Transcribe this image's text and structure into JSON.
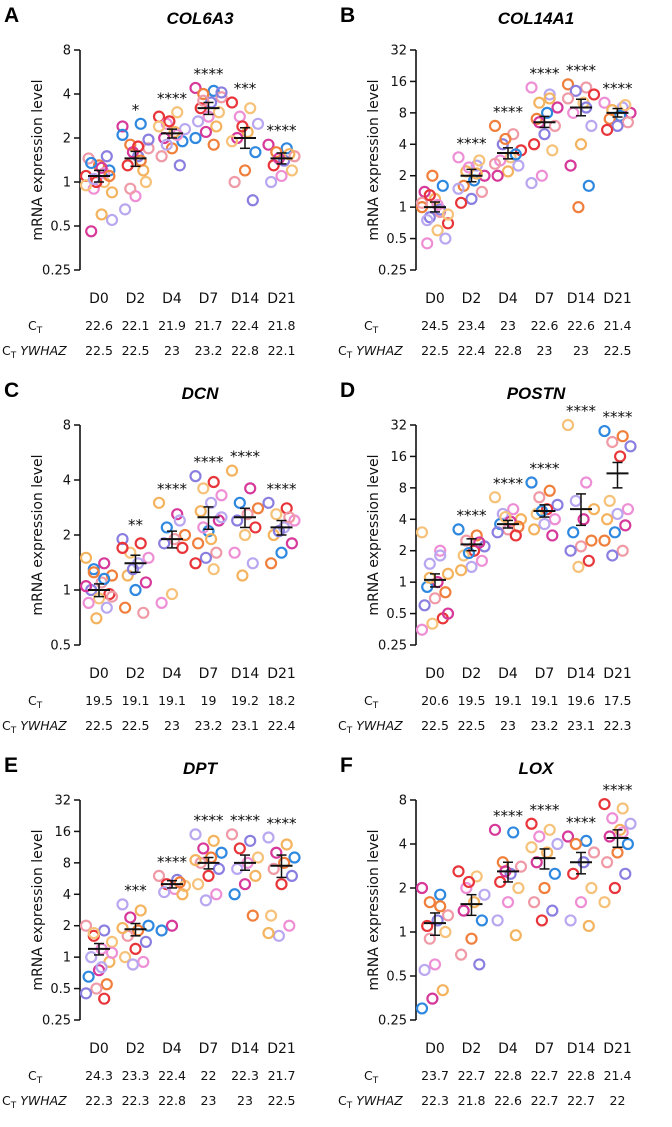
{
  "chart_data": [
    {
      "panel": "A",
      "title": "COL6A3",
      "type": "scatter",
      "yscale": "log2",
      "ylabel": "mRNA expression level",
      "yticks": [
        0.25,
        0.5,
        1,
        2,
        4,
        8
      ],
      "ytick_labels": [
        "0.25",
        "0.5",
        "1",
        "2",
        "4",
        "8"
      ],
      "categories": [
        "D0",
        "D2",
        "D4",
        "D7",
        "D14",
        "D21"
      ],
      "means": [
        1.1,
        1.45,
        2.15,
        3.2,
        2.0,
        1.45
      ],
      "sem_low": [
        1.0,
        1.28,
        2.0,
        2.9,
        1.7,
        1.33
      ],
      "sem_high": [
        1.2,
        1.62,
        2.3,
        3.5,
        2.35,
        1.58
      ],
      "significance": [
        "",
        "*",
        "****",
        "****",
        "***",
        "****"
      ],
      "points": [
        [
          1.1,
          1.0,
          0.9,
          0.55,
          0.6,
          0.46,
          1.2,
          1.3,
          1.45,
          1.5,
          1.0,
          0.95,
          1.15,
          1.05,
          0.85,
          1.25,
          1.35,
          1.1
        ],
        [
          2.4,
          2.5,
          1.8,
          1.7,
          1.5,
          1.3,
          1.0,
          0.8,
          0.65,
          1.2,
          1.6,
          2.1,
          1.4,
          0.9,
          1.95,
          1.75
        ],
        [
          2.8,
          3.0,
          2.5,
          2.3,
          2.2,
          2.0,
          1.9,
          1.7,
          1.5,
          1.3,
          2.6,
          2.4,
          2.1,
          1.8
        ],
        [
          4.4,
          4.2,
          4.0,
          3.8,
          3.5,
          3.2,
          3.0,
          2.8,
          2.6,
          2.4,
          2.2,
          2.0,
          1.8,
          3.6,
          4.1
        ],
        [
          3.5,
          3.2,
          2.8,
          2.5,
          2.2,
          2.0,
          1.6,
          1.2,
          1.0,
          0.75,
          2.4,
          1.9
        ],
        [
          1.8,
          1.7,
          1.6,
          1.5,
          1.4,
          1.3,
          1.2,
          1.1,
          1.0,
          1.55,
          1.45
        ]
      ],
      "ct": [
        "22.6",
        "22.1",
        "21.9",
        "21.7",
        "22.4",
        "21.8"
      ],
      "ct_ywhaz": [
        "22.5",
        "22.5",
        "23",
        "23.2",
        "22.8",
        "22.1"
      ]
    },
    {
      "panel": "B",
      "title": "COL14A1",
      "type": "scatter",
      "yscale": "log2",
      "ylabel": "mRNA expression level",
      "yticks": [
        0.25,
        0.5,
        1,
        2,
        4,
        8,
        16,
        32
      ],
      "ytick_labels": [
        "0.25",
        "0.5",
        "1",
        "2",
        "4",
        "8",
        "16",
        "32"
      ],
      "categories": [
        "D0",
        "D2",
        "D4",
        "D7",
        "D14",
        "D21"
      ],
      "means": [
        1.0,
        2.0,
        3.3,
        6.5,
        9.0,
        8.0
      ],
      "sem_low": [
        0.9,
        1.75,
        2.9,
        5.8,
        7.5,
        7.3
      ],
      "sem_high": [
        1.12,
        2.3,
        3.7,
        7.4,
        10.8,
        8.8
      ],
      "significance": [
        "",
        "****",
        "****",
        "****",
        "****",
        "****"
      ],
      "points": [
        [
          1.0,
          0.9,
          0.8,
          0.7,
          0.6,
          0.45,
          0.5,
          1.2,
          1.4,
          1.6,
          2.0,
          1.1,
          0.95,
          1.3,
          0.85,
          1.05,
          0.75
        ],
        [
          3.0,
          2.5,
          2.2,
          2.0,
          1.8,
          1.6,
          1.4,
          1.2,
          1.1,
          2.8,
          2.4,
          1.5,
          2.1
        ],
        [
          6.0,
          5.0,
          4.0,
          3.5,
          3.0,
          2.8,
          2.5,
          2.2,
          2.0,
          3.2,
          4.5,
          2.6
        ],
        [
          14.0,
          12.0,
          10.0,
          9.0,
          8.0,
          7.0,
          6.0,
          5.0,
          4.0,
          3.5,
          2.0,
          1.7,
          11.0,
          6.5
        ],
        [
          15.0,
          14.0,
          13.0,
          12.0,
          10.0,
          8.0,
          6.0,
          4.0,
          2.5,
          1.6,
          1.0,
          11.0,
          9.0
        ],
        [
          10.0,
          9.0,
          8.5,
          8.0,
          7.5,
          7.0,
          6.5,
          6.0,
          5.5,
          9.5
        ]
      ],
      "ct": [
        "24.5",
        "23.4",
        "23",
        "22.6",
        "22.6",
        "21.4"
      ],
      "ct_ywhaz": [
        "22.5",
        "22.4",
        "22.8",
        "23",
        "23",
        "22.5"
      ]
    },
    {
      "panel": "C",
      "title": "DCN",
      "type": "scatter",
      "yscale": "log2",
      "ylabel": "mRNA expression level",
      "yticks": [
        0.5,
        1,
        2,
        4,
        8
      ],
      "ytick_labels": [
        "0.5",
        "1",
        "2",
        "4",
        "8"
      ],
      "categories": [
        "D0",
        "D2",
        "D4",
        "D7",
        "D14",
        "D21"
      ],
      "means": [
        1.0,
        1.4,
        1.9,
        2.5,
        2.5,
        2.2
      ],
      "sem_low": [
        0.92,
        1.25,
        1.7,
        2.15,
        2.2,
        2.0
      ],
      "sem_high": [
        1.08,
        1.55,
        2.1,
        2.85,
        2.8,
        2.4
      ],
      "significance": [
        "",
        "**",
        "****",
        "****",
        "****",
        "****"
      ],
      "points": [
        [
          1.5,
          1.4,
          1.3,
          1.2,
          1.1,
          1.0,
          0.95,
          0.9,
          0.85,
          0.8,
          0.7,
          1.05,
          1.15,
          1.25,
          0.92
        ],
        [
          1.9,
          1.8,
          1.6,
          1.5,
          1.4,
          1.2,
          1.1,
          1.0,
          0.8,
          0.75,
          1.3,
          1.7
        ],
        [
          3.0,
          2.6,
          2.2,
          2.0,
          1.9,
          1.8,
          1.7,
          0.95,
          0.85,
          2.4
        ],
        [
          4.2,
          3.9,
          3.6,
          3.3,
          3.0,
          2.7,
          2.4,
          2.1,
          1.8,
          1.6,
          1.5,
          1.4,
          1.3,
          2.2,
          2.5,
          1.9
        ],
        [
          4.5,
          3.6,
          3.0,
          2.8,
          2.6,
          2.4,
          2.2,
          2.0,
          1.6,
          1.4,
          1.2
        ],
        [
          3.0,
          2.8,
          2.6,
          2.4,
          2.2,
          2.0,
          1.8,
          1.6,
          1.4,
          2.5,
          2.1
        ]
      ],
      "ct": [
        "19.5",
        "19.1",
        "19.1",
        "19",
        "19.2",
        "18.2"
      ],
      "ct_ywhaz": [
        "22.5",
        "22.5",
        "23",
        "23.2",
        "23.1",
        "22.4"
      ]
    },
    {
      "panel": "D",
      "title": "POSTN",
      "type": "scatter",
      "yscale": "log2",
      "ylabel": "mRNA expression level",
      "yticks": [
        0.25,
        0.5,
        1,
        2,
        4,
        8,
        16,
        32
      ],
      "ytick_labels": [
        "0.25",
        "0.5",
        "1",
        "2",
        "4",
        "8",
        "16",
        "32"
      ],
      "categories": [
        "D0",
        "D2",
        "D4",
        "D7",
        "D14",
        "D21"
      ],
      "means": [
        1.05,
        2.3,
        3.6,
        4.8,
        5.0,
        11.0
      ],
      "sem_low": [
        0.9,
        2.0,
        3.3,
        4.2,
        3.5,
        8.0
      ],
      "sem_high": [
        1.2,
        2.6,
        3.9,
        5.5,
        7.0,
        14.0
      ],
      "significance": [
        "",
        "****",
        "****",
        "****",
        "****",
        "****"
      ],
      "points": [
        [
          3.0,
          2.0,
          1.5,
          1.2,
          1.0,
          0.9,
          0.8,
          0.7,
          0.6,
          0.45,
          0.4,
          0.35,
          1.8,
          1.1,
          0.5
        ],
        [
          3.2,
          2.8,
          2.5,
          2.2,
          2.0,
          1.8,
          1.6,
          1.4,
          1.3,
          2.4,
          1.9
        ],
        [
          6.5,
          5.0,
          4.5,
          4.0,
          3.8,
          3.6,
          3.4,
          3.2,
          3.0,
          2.8,
          4.2
        ],
        [
          9.0,
          7.5,
          6.5,
          5.5,
          5.0,
          4.5,
          4.0,
          3.6,
          3.2,
          2.8,
          4.8
        ],
        [
          32.0,
          9.0,
          6.0,
          5.0,
          4.0,
          3.0,
          2.5,
          2.2,
          2.0,
          1.6,
          1.4
        ],
        [
          28.0,
          25.0,
          22.0,
          20.0,
          16.0,
          6.0,
          5.0,
          4.5,
          4.0,
          3.5,
          3.0,
          2.5,
          2.0,
          1.8
        ]
      ],
      "ct": [
        "20.6",
        "19.5",
        "19.1",
        "19.1",
        "19.6",
        "17.5"
      ],
      "ct_ywhaz": [
        "22.5",
        "22.5",
        "23",
        "23.2",
        "23.1",
        "22.3"
      ]
    },
    {
      "panel": "E",
      "title": "DPT",
      "type": "scatter",
      "yscale": "log2",
      "ylabel": "mRNA expression level",
      "yticks": [
        0.25,
        0.5,
        1,
        2,
        4,
        8,
        16,
        32
      ],
      "ytick_labels": [
        "0.25",
        "0.5",
        "1",
        "2",
        "4",
        "8",
        "16",
        "32"
      ],
      "categories": [
        "D0",
        "D2",
        "D4",
        "D7",
        "D14",
        "D21"
      ],
      "means": [
        1.2,
        1.85,
        5.0,
        8.0,
        8.0,
        7.5
      ],
      "sem_low": [
        1.05,
        1.6,
        4.6,
        7.0,
        6.8,
        5.8
      ],
      "sem_high": [
        1.35,
        2.1,
        5.4,
        9.0,
        9.5,
        9.5
      ],
      "significance": [
        "",
        "***",
        "****",
        "****",
        "****",
        "****"
      ],
      "points": [
        [
          2.0,
          1.8,
          1.6,
          1.4,
          1.2,
          1.0,
          0.9,
          0.75,
          0.65,
          0.55,
          0.5,
          0.45,
          0.4,
          1.7,
          1.1,
          0.8
        ],
        [
          3.2,
          2.8,
          2.4,
          2.0,
          1.8,
          1.6,
          1.4,
          1.2,
          1.0,
          0.9,
          0.85,
          1.9
        ],
        [
          6.0,
          5.5,
          5.0,
          4.8,
          4.5,
          4.2,
          4.0,
          2.0,
          1.8,
          5.2
        ],
        [
          15.0,
          13.0,
          11.0,
          10.0,
          9.0,
          8.0,
          7.0,
          6.0,
          5.0,
          4.0,
          3.5,
          8.5
        ],
        [
          15.0,
          13.0,
          11.0,
          9.0,
          8.0,
          7.0,
          6.0,
          5.0,
          4.0,
          2.5
        ],
        [
          14.0,
          12.0,
          10.0,
          9.0,
          8.0,
          7.0,
          6.0,
          5.0,
          2.5,
          2.0,
          1.6,
          1.7
        ]
      ],
      "ct": [
        "24.3",
        "23.3",
        "22.4",
        "22",
        "22.3",
        "21.7"
      ],
      "ct_ywhaz": [
        "22.3",
        "22.3",
        "22.8",
        "23",
        "23",
        "22.5"
      ]
    },
    {
      "panel": "F",
      "title": "LOX",
      "type": "scatter",
      "yscale": "log2",
      "ylabel": "mRNA expression level",
      "yticks": [
        0.25,
        0.5,
        1,
        2,
        4,
        8
      ],
      "ytick_labels": [
        "0.25",
        "0.5",
        "1",
        "2",
        "4",
        "8"
      ],
      "categories": [
        "D0",
        "D2",
        "D4",
        "D7",
        "D14",
        "D21"
      ],
      "means": [
        1.15,
        1.55,
        2.6,
        3.2,
        3.0,
        4.4
      ],
      "sem_low": [
        0.95,
        1.3,
        2.2,
        2.7,
        2.5,
        3.8
      ],
      "sem_high": [
        1.35,
        1.8,
        3.0,
        3.7,
        3.5,
        5.0
      ],
      "significance": [
        "",
        "",
        "****",
        "****",
        "****",
        "****"
      ],
      "points": [
        [
          2.0,
          1.8,
          1.6,
          1.3,
          1.2,
          1.1,
          1.0,
          0.6,
          0.55,
          0.4,
          0.35,
          0.3,
          1.5,
          0.9
        ],
        [
          2.6,
          2.4,
          2.0,
          1.8,
          1.6,
          1.4,
          1.2,
          0.9,
          0.7,
          0.6,
          2.2
        ],
        [
          5.0,
          4.8,
          3.0,
          2.8,
          2.5,
          2.2,
          2.0,
          1.6,
          1.2,
          0.95,
          2.6
        ],
        [
          5.5,
          5.0,
          4.5,
          4.0,
          3.5,
          3.0,
          2.5,
          2.0,
          1.6,
          1.4,
          1.2,
          3.8
        ],
        [
          4.5,
          4.2,
          4.0,
          3.5,
          3.0,
          2.5,
          2.0,
          1.6,
          1.2,
          1.1
        ],
        [
          7.5,
          7.0,
          6.0,
          5.5,
          5.0,
          4.5,
          4.0,
          3.5,
          3.0,
          2.5,
          2.0,
          1.6,
          4.8
        ]
      ],
      "ct": [
        "23.7",
        "22.7",
        "22.8",
        "22.7",
        "22.8",
        "21.4"
      ],
      "ct_ywhaz": [
        "22.3",
        "21.8",
        "22.6",
        "22.7",
        "22.7",
        "22"
      ]
    }
  ],
  "labels": {
    "ct": "C",
    "ct_sub": "T",
    "ywhaz": "YWHAZ"
  },
  "colors": {
    "palette": [
      "#e8353a",
      "#f07f3c",
      "#f4b35e",
      "#f6c27a",
      "#ef9aa6",
      "#d6399a",
      "#ee8fd6",
      "#8a7fe0",
      "#2f88e0",
      "#b9a7f0"
    ],
    "axis": "#111111",
    "mean_bar": "#111111"
  }
}
